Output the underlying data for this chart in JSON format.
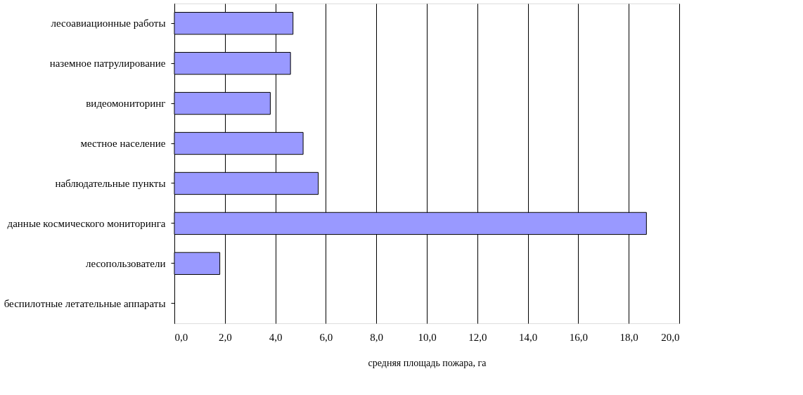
{
  "chart_data": {
    "type": "bar",
    "orientation": "horizontal",
    "xlabel": "средняя площадь пожара, га",
    "categories": [
      "лесоавиационные работы",
      "наземное патрулирование",
      "видеомониторинг",
      "местное население",
      "наблюдательные пункты",
      "данные космического мониторинга",
      "лесопользователи",
      "беспилотные летательные аппараты"
    ],
    "values": [
      4.7,
      4.6,
      3.8,
      5.1,
      5.7,
      18.7,
      1.8,
      0
    ],
    "color": "#9999ff",
    "xlim": [
      0,
      20
    ],
    "xticks": [
      {
        "value": 0,
        "label": "0,0"
      },
      {
        "value": 2,
        "label": "2,0"
      },
      {
        "value": 4,
        "label": "4,0"
      },
      {
        "value": 6,
        "label": "6,0"
      },
      {
        "value": 8,
        "label": "8,0"
      },
      {
        "value": 10,
        "label": "10,0"
      },
      {
        "value": 12,
        "label": "12,0"
      },
      {
        "value": 14,
        "label": "14,0"
      },
      {
        "value": 16,
        "label": "16,0"
      },
      {
        "value": 18,
        "label": "18,0"
      },
      {
        "value": 20,
        "label": "20,0"
      }
    ],
    "grid": "x",
    "legend": false
  }
}
